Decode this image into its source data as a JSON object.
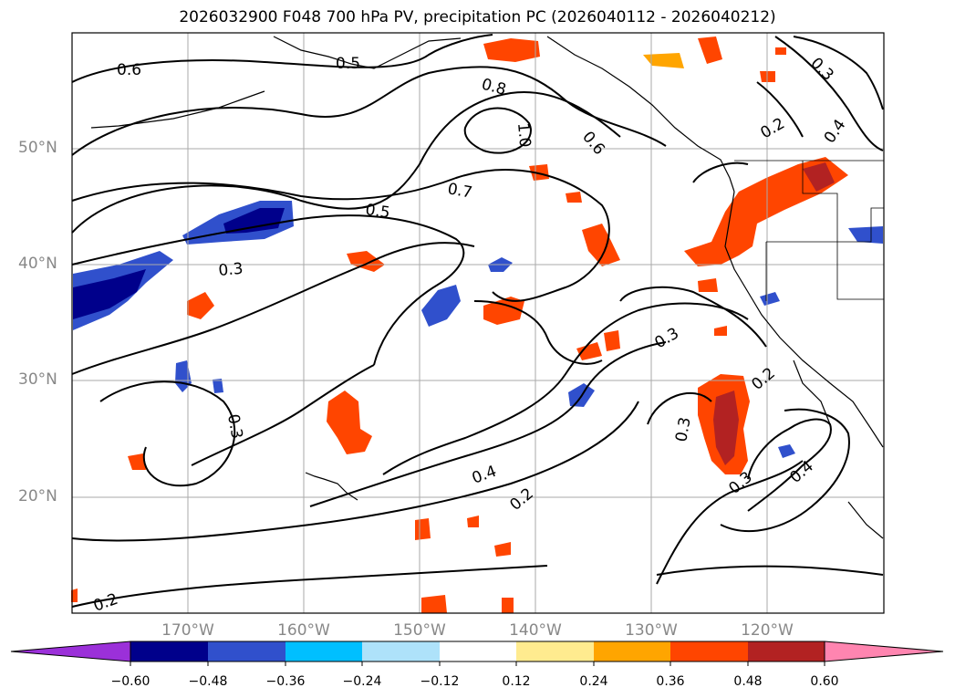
{
  "title": "2026032900 F048 700 hPa PV, precipitation PC (2026040112 - 2026040212)",
  "lat_labels": [
    "50°N",
    "40°N",
    "30°N",
    "20°N"
  ],
  "lon_labels": [
    "170°W",
    "160°W",
    "150°W",
    "140°W",
    "130°W",
    "120°W"
  ],
  "contour_labels": [
    "0.6",
    "0.5",
    "0.8",
    "1.0",
    "0.6",
    "0.7",
    "0.5",
    "0.3",
    "0.3",
    "0.3",
    "0.2",
    "0.4",
    "0.3",
    "0.2",
    "0.3",
    "0.4",
    "0.4",
    "0.2",
    "0.2"
  ],
  "colorbar": {
    "ticks": [
      "−0.60",
      "−0.48",
      "−0.36",
      "−0.24",
      "−0.12",
      "0.12",
      "0.24",
      "0.36",
      "0.48",
      "0.60"
    ],
    "colors": [
      "#9b30d9",
      "#00008b",
      "#3050cc",
      "#00bfff",
      "#aee2fa",
      "#ffffff",
      "#ffeb8f",
      "#ffa500",
      "#ff4500",
      "#b22222",
      "#ff85b0"
    ]
  },
  "map": {
    "land_color": "#000000",
    "grid_color": "#aaaaaa",
    "contour_color": "#000000"
  }
}
